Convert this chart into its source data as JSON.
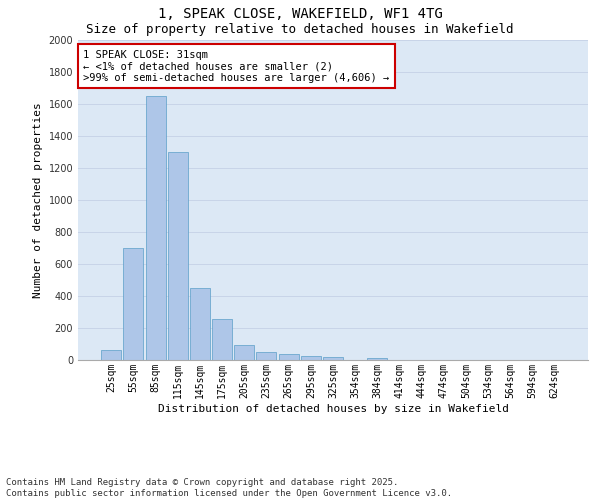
{
  "title": "1, SPEAK CLOSE, WAKEFIELD, WF1 4TG",
  "subtitle": "Size of property relative to detached houses in Wakefield",
  "xlabel": "Distribution of detached houses by size in Wakefield",
  "ylabel": "Number of detached properties",
  "categories": [
    "25sqm",
    "55sqm",
    "85sqm",
    "115sqm",
    "145sqm",
    "175sqm",
    "205sqm",
    "235sqm",
    "265sqm",
    "295sqm",
    "325sqm",
    "354sqm",
    "384sqm",
    "414sqm",
    "444sqm",
    "474sqm",
    "504sqm",
    "534sqm",
    "564sqm",
    "594sqm",
    "624sqm"
  ],
  "values": [
    60,
    700,
    1650,
    1300,
    450,
    255,
    95,
    50,
    35,
    25,
    20,
    0,
    15,
    0,
    0,
    0,
    0,
    0,
    0,
    0,
    0
  ],
  "bar_color": "#aec6e8",
  "bar_edge_color": "#5a9ec8",
  "annotation_text": "1 SPEAK CLOSE: 31sqm\n← <1% of detached houses are smaller (2)\n>99% of semi-detached houses are larger (4,606) →",
  "annotation_box_color": "#ffffff",
  "annotation_box_edge_color": "#cc0000",
  "ylim": [
    0,
    2000
  ],
  "yticks": [
    0,
    200,
    400,
    600,
    800,
    1000,
    1200,
    1400,
    1600,
    1800,
    2000
  ],
  "grid_color": "#c8d4e8",
  "background_color": "#dce8f5",
  "footer_text": "Contains HM Land Registry data © Crown copyright and database right 2025.\nContains public sector information licensed under the Open Government Licence v3.0.",
  "title_fontsize": 10,
  "subtitle_fontsize": 9,
  "xlabel_fontsize": 8,
  "ylabel_fontsize": 8,
  "tick_fontsize": 7,
  "annotation_fontsize": 7.5,
  "footer_fontsize": 6.5
}
